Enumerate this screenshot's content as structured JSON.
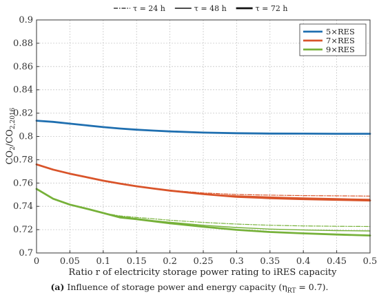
{
  "caption": {
    "label": "(a)",
    "text": "Influence of storage power and energy capacity (η"
  },
  "caption_sub": "RT",
  "caption_tail": " = 0.7).",
  "chart_data": {
    "type": "line",
    "title": "",
    "xlabel": "Ratio r of electricity storage power rating to iRES capacity",
    "ylabel": "CO2/CO2,2016",
    "xlim": [
      0,
      0.5
    ],
    "ylim": [
      0.7,
      0.9
    ],
    "xticks": [
      "0",
      "0.05",
      "0.1",
      "0.15",
      "0.2",
      "0.25",
      "0.3",
      "0.35",
      "0.4",
      "0.45",
      "0.5"
    ],
    "yticks": [
      "0.7",
      "0.72",
      "0.74",
      "0.76",
      "0.78",
      "0.8",
      "0.82",
      "0.84",
      "0.86",
      "0.88",
      "0.9"
    ],
    "grid": true,
    "legend_position": "top-right",
    "legend": [
      "5×RES",
      "7×RES",
      "9×RES"
    ],
    "tau_legend": [
      "τ = 24 h",
      "τ = 48 h",
      "τ = 72 h"
    ],
    "colors": {
      "5×RES": "#1f6fb0",
      "7×RES": "#d9542a",
      "9×RES": "#76b139"
    },
    "x": [
      0,
      0.025,
      0.05,
      0.075,
      0.1,
      0.125,
      0.15,
      0.175,
      0.2,
      0.25,
      0.3,
      0.35,
      0.4,
      0.45,
      0.5
    ],
    "series": [
      {
        "name": "5×RES",
        "tau": "24 h",
        "values": [
          0.8135,
          0.8125,
          0.811,
          0.8095,
          0.808,
          0.8068,
          0.8058,
          0.805,
          0.8043,
          0.8033,
          0.8028,
          0.8025,
          0.8024,
          0.8023,
          0.8023
        ]
      },
      {
        "name": "5×RES",
        "tau": "48 h",
        "values": [
          0.8135,
          0.8125,
          0.811,
          0.8095,
          0.808,
          0.8068,
          0.8058,
          0.805,
          0.8043,
          0.8033,
          0.8028,
          0.8025,
          0.8024,
          0.8023,
          0.8023
        ]
      },
      {
        "name": "5×RES",
        "tau": "72 h",
        "values": [
          0.8135,
          0.8125,
          0.811,
          0.8095,
          0.808,
          0.8068,
          0.8058,
          0.805,
          0.8043,
          0.8033,
          0.8028,
          0.8025,
          0.8024,
          0.8023,
          0.8023
        ]
      },
      {
        "name": "7×RES",
        "tau": "24 h",
        "values": [
          0.776,
          0.7715,
          0.768,
          0.765,
          0.762,
          0.7595,
          0.7572,
          0.7553,
          0.7538,
          0.7515,
          0.7502,
          0.7496,
          0.7492,
          0.749,
          0.7488
        ]
      },
      {
        "name": "7×RES",
        "tau": "48 h",
        "values": [
          0.776,
          0.7715,
          0.768,
          0.765,
          0.762,
          0.7595,
          0.7572,
          0.7553,
          0.7535,
          0.7505,
          0.749,
          0.748,
          0.7472,
          0.7466,
          0.746
        ]
      },
      {
        "name": "7×RES",
        "tau": "72 h",
        "values": [
          0.776,
          0.7715,
          0.768,
          0.765,
          0.762,
          0.7595,
          0.7572,
          0.7553,
          0.7535,
          0.7505,
          0.7482,
          0.747,
          0.7462,
          0.7456,
          0.745
        ]
      },
      {
        "name": "9×RES",
        "tau": "24 h",
        "values": [
          0.755,
          0.7465,
          0.7415,
          0.738,
          0.7343,
          0.7318,
          0.7305,
          0.7293,
          0.7281,
          0.7262,
          0.7248,
          0.7238,
          0.7232,
          0.7229,
          0.7227
        ]
      },
      {
        "name": "9×RES",
        "tau": "48 h",
        "values": [
          0.755,
          0.7465,
          0.7415,
          0.738,
          0.7343,
          0.7312,
          0.7295,
          0.7278,
          0.7264,
          0.7238,
          0.7218,
          0.7205,
          0.7197,
          0.7192,
          0.7189
        ]
      },
      {
        "name": "9×RES",
        "tau": "72 h",
        "values": [
          0.755,
          0.7465,
          0.7415,
          0.738,
          0.7343,
          0.7305,
          0.729,
          0.7272,
          0.7255,
          0.7225,
          0.7198,
          0.718,
          0.7168,
          0.7158,
          0.715
        ]
      }
    ]
  }
}
